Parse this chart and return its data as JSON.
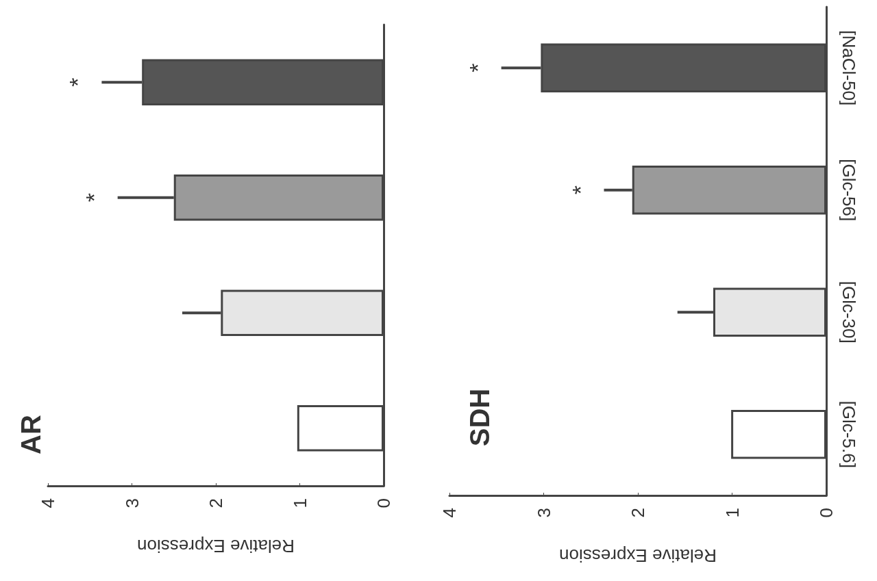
{
  "chart_data": [
    {
      "type": "bar",
      "orientation": "horizontal",
      "title": "AR",
      "xlabel": "Relative Expression",
      "categories": [
        null,
        null,
        null,
        null
      ],
      "values": [
        2.88,
        2.5,
        1.94,
        1.03
      ],
      "errors": [
        0.48,
        0.67,
        0.46,
        null
      ],
      "colors": [
        "#555555",
        "#9a9a9a",
        "#e6e6e6",
        "#ffffff"
      ],
      "xlim": [
        4,
        0
      ],
      "xticks": [
        4,
        3,
        2,
        1,
        0
      ],
      "grid": false,
      "tick_labels": "x",
      "annotations": [
        "*",
        "*"
      ]
    },
    {
      "type": "bar",
      "orientation": "horizontal",
      "title": "SDH",
      "xlabel": "Relative Expression",
      "categories": [
        "[NaCl-50]",
        "[Glc-56]",
        "[Glc-30]",
        "[Glc-5.6]"
      ],
      "values": [
        3.03,
        2.06,
        1.2,
        1.01
      ],
      "errors": [
        0.42,
        0.3,
        0.38,
        null
      ],
      "colors": [
        "#555555",
        "#9a9a9a",
        "#e6e6e6",
        "#ffffff"
      ],
      "xlim": [
        4,
        0
      ],
      "xticks": [
        4,
        3,
        2,
        1,
        0
      ],
      "grid": false,
      "annotations": [
        "*",
        "*"
      ]
    }
  ]
}
